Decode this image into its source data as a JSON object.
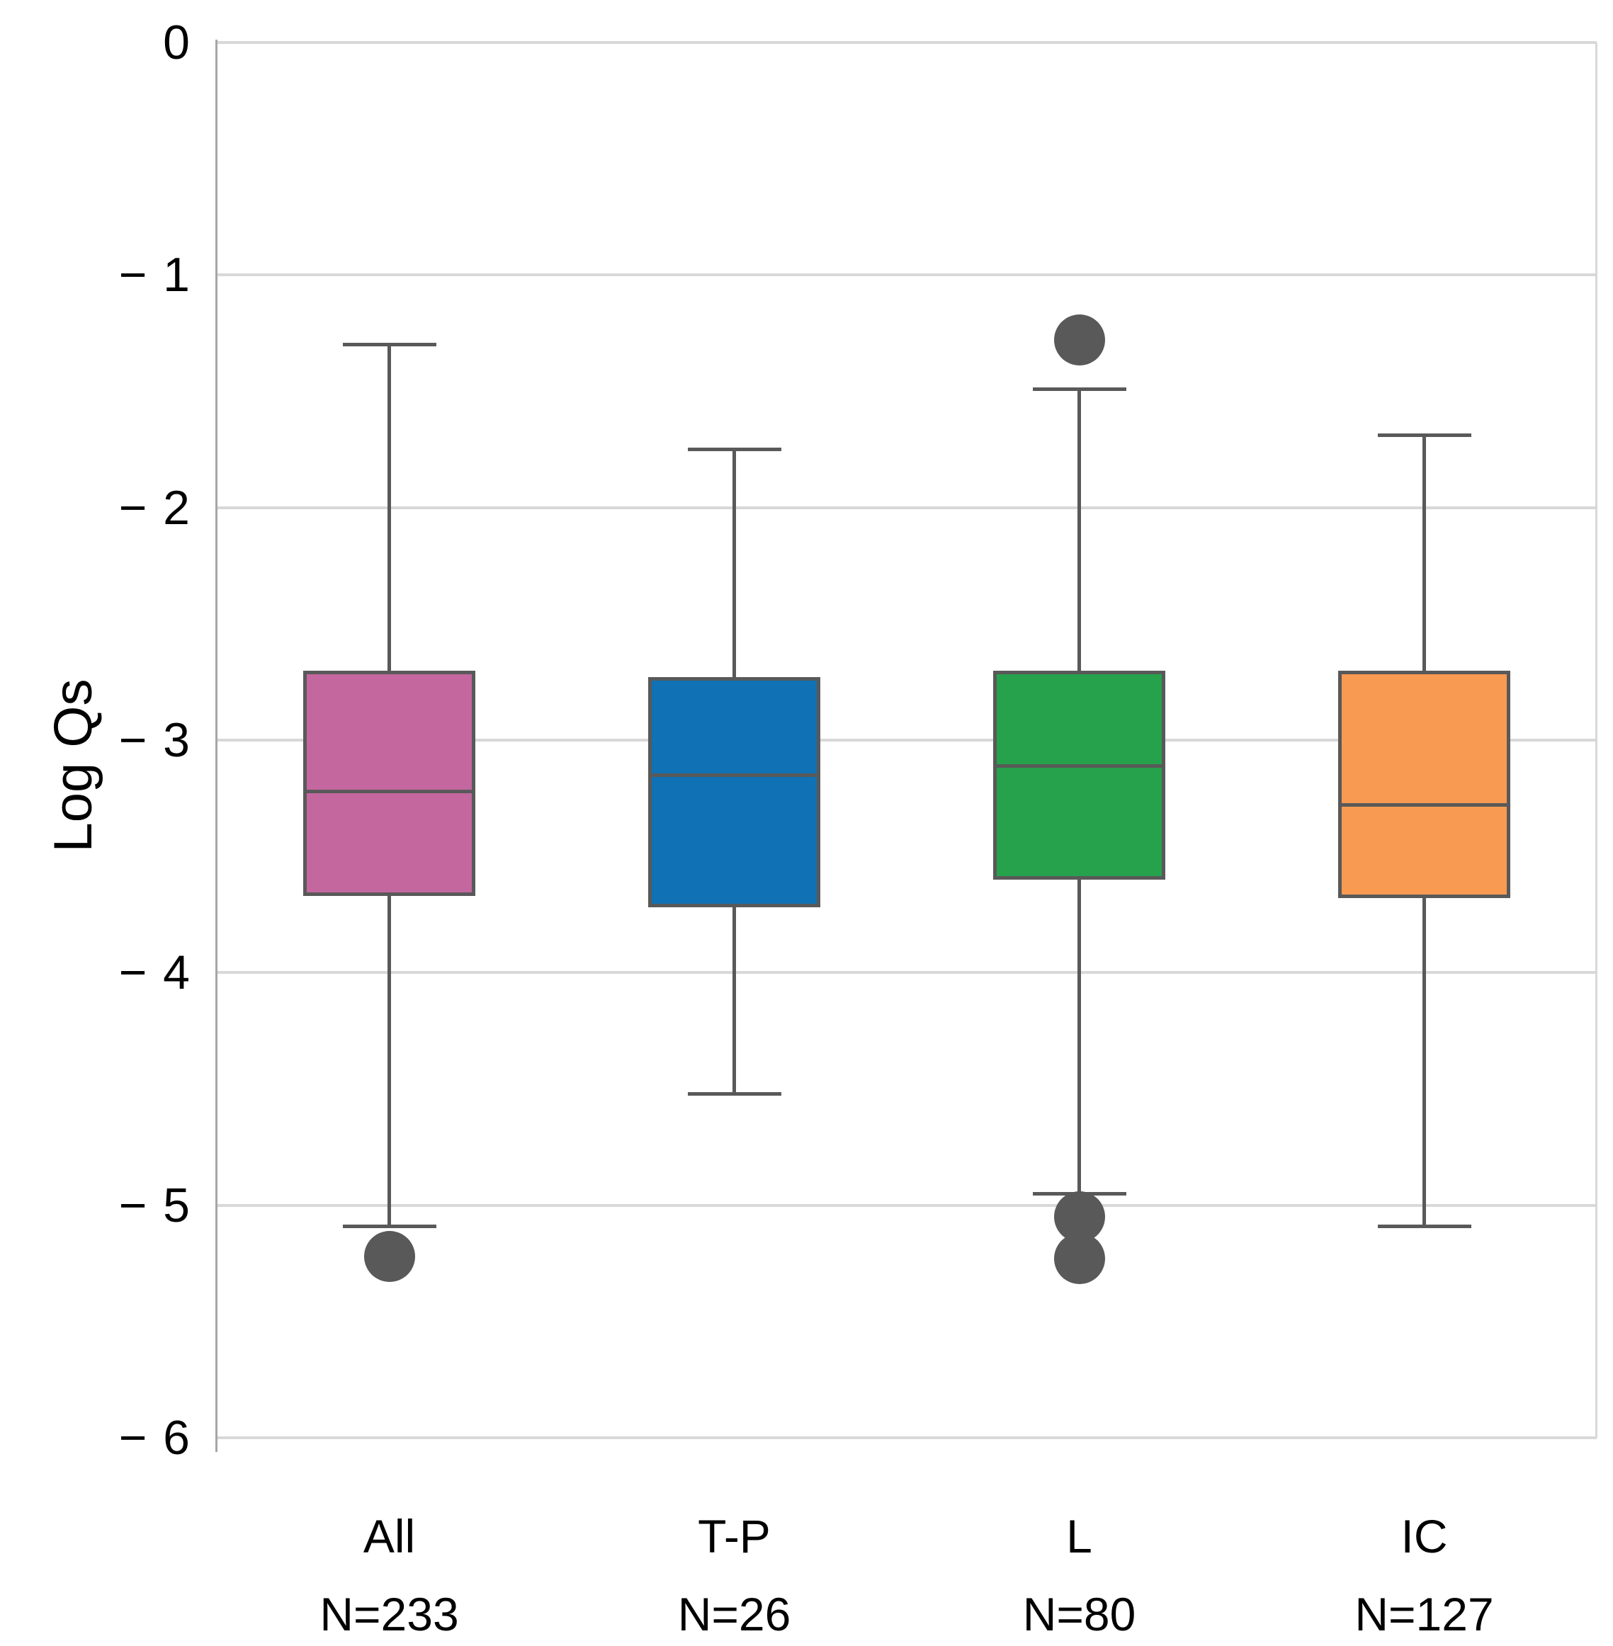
{
  "chart_data": {
    "type": "boxplot",
    "title": "",
    "xlabel": "",
    "ylabel": "Log Qs",
    "ylim": [
      0,
      -6
    ],
    "grid": true,
    "legend": false,
    "yticks": [
      "0",
      "− 1",
      "− 2",
      "− 3",
      "− 4",
      "− 5",
      "− 6"
    ],
    "ytick_values": [
      0,
      -1,
      -2,
      -3,
      -4,
      -5,
      -6
    ],
    "categories": [
      {
        "label": "All",
        "n_label": "N=233",
        "color": "#c4679f",
        "whisker_high": -1.3,
        "q3": -2.7,
        "median": -3.22,
        "q1": -3.67,
        "whisker_low": -5.09,
        "outliers": [
          -5.22
        ]
      },
      {
        "label": "T-P",
        "n_label": "N=26",
        "color": "#1072b5",
        "whisker_high": -1.75,
        "q3": -2.73,
        "median": -3.15,
        "q1": -3.72,
        "whisker_low": -4.52,
        "outliers": []
      },
      {
        "label": "L",
        "n_label": "N=80",
        "color": "#27a24c",
        "whisker_high": -1.49,
        "q3": -2.7,
        "median": -3.11,
        "q1": -3.6,
        "whisker_low": -4.95,
        "outliers": [
          -1.28,
          -5.05,
          -5.23
        ]
      },
      {
        "label": "IC",
        "n_label": "N=127",
        "color": "#f99a53",
        "whisker_high": -1.69,
        "q3": -2.7,
        "median": -3.28,
        "q1": -3.68,
        "whisker_low": -5.09,
        "outliers": []
      }
    ],
    "style_colors": {
      "gridline": "#d8d8d8",
      "axis_line": "#a6a6a6",
      "box_border": "#595959",
      "whisker": "#595959",
      "outlier": "#595959",
      "text": "#000000"
    }
  }
}
